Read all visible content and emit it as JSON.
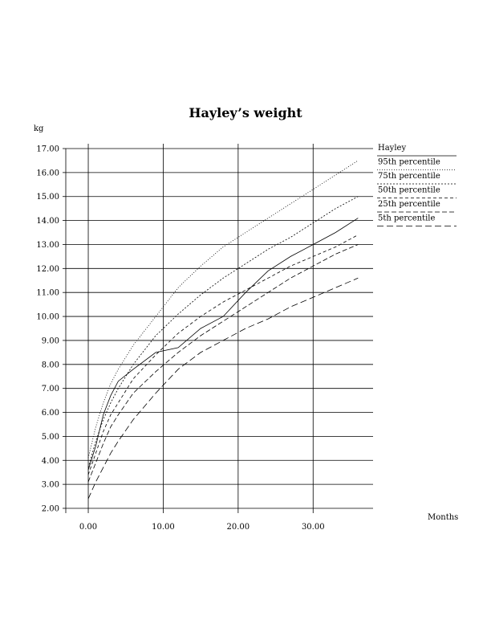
{
  "chart_data": {
    "type": "line",
    "title": "Hayley’s weight",
    "xlabel": "Months",
    "ylabel": "kg",
    "xlim": [
      -3,
      38
    ],
    "ylim": [
      2,
      17
    ],
    "x_ticks": [
      0,
      10,
      20,
      30
    ],
    "x_tick_labels": [
      "0.00",
      "10.00",
      "20.00",
      "30.00"
    ],
    "y_ticks": [
      2,
      3,
      4,
      5,
      6,
      7,
      8,
      9,
      10,
      11,
      12,
      13,
      14,
      15,
      16,
      17
    ],
    "y_tick_labels": [
      "2.00",
      "3.00",
      "4.00",
      "5.00",
      "6.00",
      "7.00",
      "8.00",
      "9.00",
      "10.00",
      "11.00",
      "12.00",
      "13.00",
      "14.00",
      "15.00",
      "16.00",
      "17.00"
    ],
    "grid": true,
    "legend_position": "right",
    "series": [
      {
        "name": "Hayley",
        "dash": "solid",
        "x": [
          0,
          1,
          2,
          3,
          4,
          6,
          9,
          12,
          15,
          18,
          21,
          24,
          27,
          30,
          33,
          36
        ],
        "y": [
          3.6,
          4.6,
          5.9,
          6.7,
          7.3,
          7.8,
          8.5,
          8.7,
          9.5,
          10.0,
          11.0,
          11.9,
          12.5,
          13.0,
          13.5,
          14.1
        ]
      },
      {
        "name": "95th percentile",
        "dash": "dotted",
        "x": [
          0,
          1,
          2,
          3,
          4,
          6,
          9,
          12,
          15,
          18,
          21,
          24,
          27,
          30,
          33,
          36
        ],
        "y": [
          4.1,
          5.4,
          6.4,
          7.2,
          7.8,
          8.8,
          10.0,
          11.2,
          12.1,
          12.9,
          13.5,
          14.1,
          14.7,
          15.3,
          15.9,
          16.5
        ]
      },
      {
        "name": "75th percentile",
        "dash": "dashed-short",
        "x": [
          0,
          1,
          2,
          3,
          4,
          6,
          9,
          12,
          15,
          18,
          21,
          24,
          27,
          30,
          33,
          36
        ],
        "y": [
          3.7,
          4.8,
          5.7,
          6.4,
          7.0,
          8.0,
          9.2,
          10.1,
          10.9,
          11.6,
          12.2,
          12.8,
          13.3,
          13.9,
          14.5,
          15.0
        ]
      },
      {
        "name": "50th percentile",
        "dash": "dashed-medium",
        "x": [
          0,
          1,
          2,
          3,
          4,
          6,
          9,
          12,
          15,
          18,
          21,
          24,
          27,
          30,
          33,
          36
        ],
        "y": [
          3.4,
          4.3,
          5.2,
          5.9,
          6.4,
          7.4,
          8.4,
          9.3,
          10.0,
          10.6,
          11.1,
          11.6,
          12.1,
          12.5,
          12.9,
          13.4
        ]
      },
      {
        "name": "25th percentile",
        "dash": "dashed-long",
        "x": [
          0,
          1,
          2,
          3,
          4,
          6,
          9,
          12,
          15,
          18,
          21,
          24,
          27,
          30,
          33,
          36
        ],
        "y": [
          3.1,
          3.9,
          4.7,
          5.4,
          5.9,
          6.8,
          7.7,
          8.5,
          9.2,
          9.8,
          10.4,
          11.0,
          11.6,
          12.1,
          12.6,
          13.0
        ]
      },
      {
        "name": "5th percentile",
        "dash": "dashed-xlong",
        "x": [
          0,
          1,
          2,
          3,
          4,
          6,
          9,
          12,
          15,
          18,
          21,
          24,
          27,
          30,
          33,
          36
        ],
        "y": [
          2.4,
          3.1,
          3.7,
          4.3,
          4.8,
          5.7,
          6.8,
          7.8,
          8.5,
          9.0,
          9.5,
          9.9,
          10.4,
          10.8,
          11.2,
          11.6
        ]
      }
    ]
  }
}
